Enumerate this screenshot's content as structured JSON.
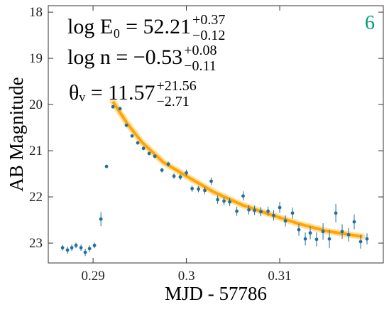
{
  "chart_data": {
    "type": "scatter",
    "xlabel": "MJD - 57786",
    "ylabel": "AB Magnitude",
    "panel_label": "6",
    "panel_label_color": "#009e73",
    "annotations": [
      {
        "text": "log E₀ = 52.21",
        "upper": "+0.37",
        "lower": "−0.12"
      },
      {
        "text": "log n = −0.53",
        "upper": "+0.08",
        "lower": "−0.11"
      },
      {
        "text": "θᵥ = 11.57",
        "upper": "+21.56",
        "lower": "−2.71"
      }
    ],
    "xlim": [
      0.2852,
      0.3211
    ],
    "ylim": [
      23.43,
      17.86
    ],
    "xticks": [
      0.29,
      0.3,
      0.31
    ],
    "yticks": [
      18,
      19,
      20,
      21,
      22,
      23
    ],
    "inverted_y": true,
    "color": "#1f6fa0",
    "x": [
      0.28673,
      0.28726,
      0.28772,
      0.28817,
      0.28871,
      0.28916,
      0.28962,
      0.29015,
      0.29084,
      0.29144,
      0.29213,
      0.29289,
      0.29357,
      0.29418,
      0.29479,
      0.2954,
      0.29601,
      0.29662,
      0.29738,
      0.29806,
      0.29867,
      0.29935,
      0.3,
      0.30061,
      0.30129,
      0.30197,
      0.30266,
      0.30335,
      0.30403,
      0.30464,
      0.3054,
      0.30608,
      0.30669,
      0.3073,
      0.30798,
      0.30875,
      0.30935,
      0.31,
      0.31061,
      0.31137,
      0.31205,
      0.31274,
      0.31327,
      0.31395,
      0.31464,
      0.31532,
      0.31601,
      0.31669,
      0.31738,
      0.31798,
      0.31867,
      0.31935
    ],
    "values": [
      23.1,
      23.15,
      23.1,
      23.05,
      23.1,
      23.2,
      23.12,
      23.05,
      22.48,
      21.34,
      20.05,
      20.09,
      20.45,
      20.68,
      20.83,
      20.95,
      21.06,
      21.12,
      21.42,
      21.29,
      21.55,
      21.57,
      21.48,
      21.82,
      21.83,
      21.86,
      21.66,
      22.06,
      22.09,
      22.11,
      22.31,
      21.98,
      22.28,
      22.29,
      22.32,
      22.31,
      22.4,
      22.23,
      22.52,
      22.35,
      22.71,
      22.91,
      22.78,
      22.92,
      22.75,
      22.91,
      22.35,
      22.75,
      22.82,
      22.54,
      22.97,
      22.91
    ],
    "yerr": [
      0.06,
      0.08,
      0.07,
      0.06,
      0.07,
      0.08,
      0.07,
      0.06,
      0.15,
      0.04,
      0.03,
      0.03,
      0.03,
      0.03,
      0.04,
      0.04,
      0.04,
      0.04,
      0.05,
      0.05,
      0.06,
      0.06,
      0.07,
      0.07,
      0.07,
      0.08,
      0.08,
      0.09,
      0.09,
      0.09,
      0.1,
      0.1,
      0.1,
      0.1,
      0.1,
      0.1,
      0.11,
      0.12,
      0.12,
      0.12,
      0.13,
      0.14,
      0.14,
      0.15,
      0.18,
      0.2,
      0.2,
      0.16,
      0.15,
      0.16,
      0.15,
      0.12
    ],
    "model": {
      "color": "#ffa500",
      "x": [
        0.29213,
        0.29373,
        0.29525,
        0.29753,
        0.3,
        0.30289,
        0.30593,
        0.30897,
        0.31202,
        0.31506,
        0.31886
      ],
      "values": [
        19.94,
        20.43,
        20.82,
        21.25,
        21.55,
        21.89,
        22.17,
        22.38,
        22.58,
        22.74,
        22.86
      ]
    }
  }
}
